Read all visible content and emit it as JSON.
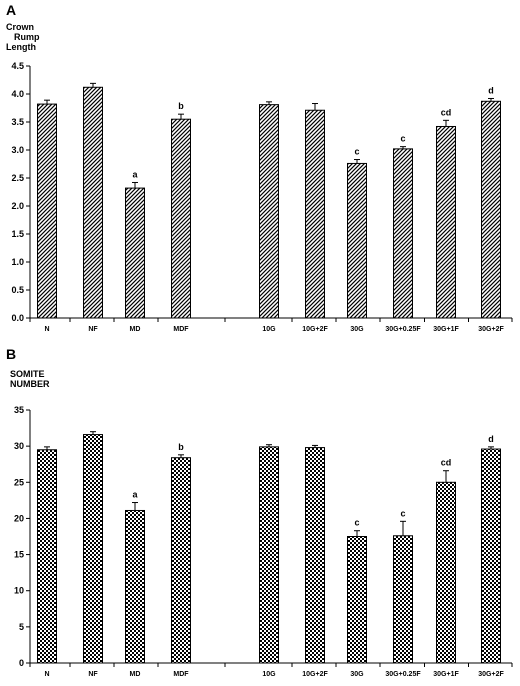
{
  "chart_data": [
    {
      "type": "bar",
      "panel": "A",
      "ylabel": [
        "Crown",
        "Rump",
        "Length"
      ],
      "ylim": [
        0,
        4.5
      ],
      "yticks": [
        "0.0",
        "0.5",
        "1.0",
        "1.5",
        "2.0",
        "2.5",
        "3.0",
        "3.5",
        "4.0",
        "4.5"
      ],
      "categories": [
        "N",
        "NF",
        "MD",
        "MDF",
        "10G",
        "10G+2F",
        "30G",
        "30G+0.25F",
        "30G+1F",
        "30G+2F"
      ],
      "values": [
        3.82,
        4.12,
        2.32,
        3.55,
        3.81,
        3.71,
        2.76,
        3.02,
        3.42,
        3.87
      ],
      "errors": [
        0.07,
        0.07,
        0.1,
        0.09,
        0.05,
        0.12,
        0.07,
        0.04,
        0.11,
        0.05
      ],
      "labels": [
        "",
        "",
        "a",
        "b",
        "",
        "",
        "c",
        "c",
        "cd",
        "d"
      ],
      "pattern": "diagonal-hatch",
      "grid": false,
      "legend": "none"
    },
    {
      "type": "bar",
      "panel": "B",
      "ylabel": [
        "SOMITE",
        "NUMBER"
      ],
      "ylim": [
        0,
        35
      ],
      "yticks": [
        "0",
        "5",
        "10",
        "15",
        "20",
        "25",
        "30",
        "35"
      ],
      "categories": [
        "N",
        "NF",
        "MD",
        "MDF",
        "10G",
        "10G+2F",
        "30G",
        "30G+0.25F",
        "30G+1F",
        "30G+2F"
      ],
      "values": [
        29.5,
        31.6,
        21.1,
        28.4,
        29.9,
        29.8,
        17.5,
        17.6,
        25.0,
        29.6
      ],
      "errors": [
        0.4,
        0.4,
        1.1,
        0.4,
        0.3,
        0.3,
        0.8,
        2.0,
        1.6,
        0.3
      ],
      "labels": [
        "",
        "",
        "a",
        "b",
        "",
        "",
        "c",
        "c",
        "cd",
        "d"
      ],
      "pattern": "checker",
      "grid": false,
      "legend": "none"
    }
  ]
}
